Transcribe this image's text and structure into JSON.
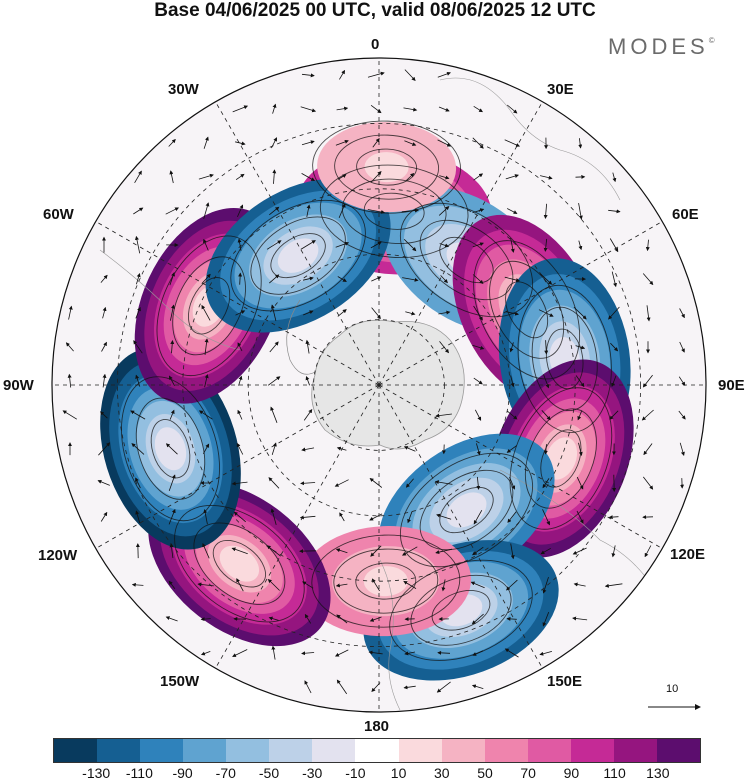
{
  "title": "Base 04/06/2025 00 UTC, valid 08/06/2025 12 UTC",
  "brand": {
    "text": "MODES",
    "mark": "©"
  },
  "longitude_labels": {
    "n0": "0",
    "e30": "30E",
    "e60": "60E",
    "e90": "90E",
    "e120": "120E",
    "e150": "150E",
    "s180": "180",
    "w150": "150W",
    "w120": "120W",
    "w90": "90W",
    "w60": "60W",
    "w30": "30W"
  },
  "reference_vector": {
    "value": "10",
    "icon": "arrow-right-icon"
  },
  "colorbar": {
    "colors": [
      "#083a5e",
      "#155f92",
      "#2f82bb",
      "#5fa3d0",
      "#93bfe0",
      "#bdd1e8",
      "#e3e2ef",
      "#ffffff",
      "#fadadd",
      "#f5b3c3",
      "#ef84ad",
      "#e05aa3",
      "#c52a96",
      "#95157f",
      "#5c0d6e"
    ],
    "labels": [
      "-130",
      "-110",
      "-90",
      "-70",
      "-50",
      "-30",
      "-10",
      "10",
      "30",
      "50",
      "70",
      "90",
      "110",
      "130"
    ]
  },
  "map": {
    "projection": "polar-stereographic",
    "pole": "north",
    "anomalies": [
      {
        "lon": 5,
        "lat": 50,
        "value": 95
      },
      {
        "lon": 35,
        "lat": 55,
        "value": -70
      },
      {
        "lon": 63,
        "lat": 52,
        "value": 110
      },
      {
        "lon": 82,
        "lat": 47,
        "value": -115
      },
      {
        "lon": 112,
        "lat": 45,
        "value": 125
      },
      {
        "lon": 145,
        "lat": 55,
        "value": -80
      },
      {
        "lon": 160,
        "lat": 35,
        "value": -100
      },
      {
        "lon": 178,
        "lat": 45,
        "value": 40
      },
      {
        "lon": 218,
        "lat": 38,
        "value": 120
      },
      {
        "lon": 253,
        "lat": 40,
        "value": -120
      },
      {
        "lon": 295,
        "lat": 47,
        "value": 135
      },
      {
        "lon": 328,
        "lat": 55,
        "value": -110
      },
      {
        "lon": 2,
        "lat": 40,
        "value": 25
      }
    ]
  }
}
